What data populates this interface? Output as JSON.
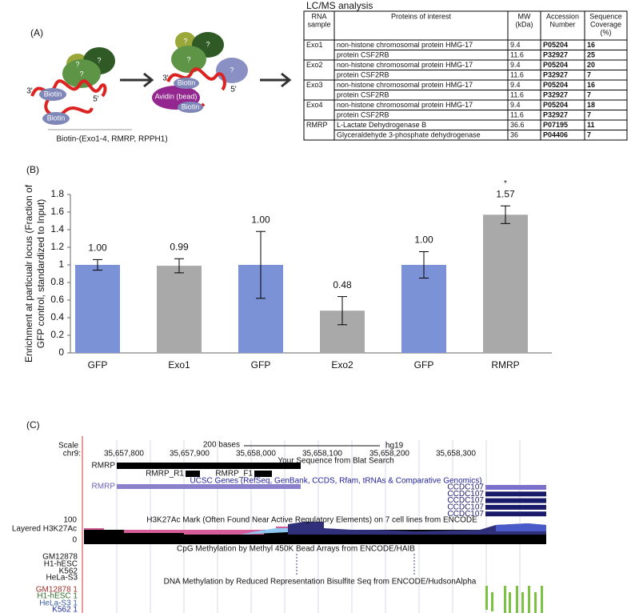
{
  "panel_a": {
    "label": "(A)",
    "left_labels": [
      "?",
      "?",
      "?",
      "3'",
      "5'",
      "Biotin",
      "Biotin"
    ],
    "right_labels": [
      "?",
      "?",
      "?",
      "?",
      "3'",
      "5'",
      "Biotin",
      "Avidin (bead)",
      "Biotin"
    ],
    "caption": "Biotin-(Exo1-4, RMRP, RPPH1)",
    "table": {
      "title": "LC/MS analysis",
      "header": [
        [
          "RNA",
          "sample"
        ],
        [
          "Proteins of interest"
        ],
        [
          "MW",
          "(kDa)"
        ],
        [
          "Accession",
          "Number"
        ],
        [
          "Sequence",
          "Coverage",
          "(%)"
        ]
      ],
      "rows": [
        {
          "sample": "Exo1",
          "protein": "non-histone chromosomal protein HMG-17",
          "mw": 9.4,
          "accession": "P05204",
          "coverage": 16
        },
        {
          "protein": "protein CSF2RB",
          "mw": 11.6,
          "accession": "P32927",
          "coverage": 25
        },
        {
          "sample": "Exo2",
          "protein": "non-histone chromosomal protein HMG-17",
          "mw": 9.4,
          "accession": "P05204",
          "coverage": 20
        },
        {
          "protein": "protein CSF2RB",
          "mw": 11.6,
          "accession": "P32927",
          "coverage": 7
        },
        {
          "sample": "Exo3",
          "protein": "non-histone chromosomal protein HMG-17",
          "mw": 9.4,
          "accession": "P05204",
          "coverage": 16
        },
        {
          "protein": "protein CSF2RB",
          "mw": 11.6,
          "accession": "P32927",
          "coverage": 7
        },
        {
          "sample": "Exo4",
          "protein": "non-histone chromosomal protein HMG-17",
          "mw": 9.4,
          "accession": "P05204",
          "coverage": 18
        },
        {
          "protein": "protein CSF2RB",
          "mw": 11.6,
          "accession": "P32927",
          "coverage": 7
        },
        {
          "sample": "RMRP",
          "protein": "L-Lactate Dehydrogenase B",
          "mw": 36.6,
          "accession": "P07195",
          "coverage": 11
        },
        {
          "protein": "Glyceraldehyde 3-phosphate dehydrogenase",
          "mw": 36,
          "accession": "P04406",
          "coverage": 7
        }
      ]
    }
  },
  "chart_data": {
    "type": "bar",
    "panel_label": "(B)",
    "y_label": [
      "Enrichment at particualr locus (Fraction of",
      "GFP control, standardized to Input)"
    ],
    "categories": [
      "GFP",
      "Exo1",
      "GFP",
      "Exo2",
      "GFP",
      "RMRP"
    ],
    "values": [
      1,
      0.99,
      1,
      0.48,
      1,
      1.57
    ],
    "value_labels": [
      "1.00",
      "0.99",
      "1.00",
      "0.48",
      "1.00",
      "1.57"
    ],
    "errors": [
      0.06,
      0.08,
      0.38,
      0.16,
      0.15,
      0.1
    ],
    "colors": [
      "#7b93d6",
      "#a9a9a9",
      "#7b93d6",
      "#a9a9a9",
      "#7b93d6",
      "#a9a9a9"
    ],
    "annotation": "*",
    "ylim": [
      0,
      1.8
    ],
    "yticks": [
      0,
      0.2,
      0.4,
      0.6,
      0.8,
      1,
      1.2,
      1.4,
      1.6,
      1.8
    ]
  },
  "panel_c": {
    "label": "(C)",
    "scale": "Scale",
    "chrom": "chr9:",
    "scale_bar": "200 bases",
    "assembly": "hg19",
    "positions": [
      "35,657,800",
      "35,657,900",
      "35,658,000",
      "35,658,100",
      "35,658,200",
      "35,658,300"
    ],
    "blat_title": "Your Sequence from Blat Search",
    "blat_items": [
      "RMRP",
      "RMRP_R1",
      "RMRP_F1"
    ],
    "genes_title": "UCSC Genes (RefSeq, GenBank, CCDS, Rfam, tRNAs & Comparative Genomics)",
    "gene_left": "RMRP",
    "genes_right": [
      "CCDC107",
      "CCDC107",
      "CCDC107",
      "CCDC107",
      "CCDC107"
    ],
    "h3k27ac_max": "100",
    "h3k27ac_label": "Layered H3K27Ac",
    "h3k27ac_min": "0",
    "h3k27ac_title": "H3K27Ac Mark (Often Found Near Active Regulatory Elements) on 7 cell lines from ENCODE",
    "cpg_title": "CpG Methylation by Methyl 450K  Bead Arrays from ENCODE/HAIB",
    "cpg_tracks": [
      "GM12878",
      "H1-hESC",
      "K562",
      "HeLa-S3"
    ],
    "rrbs_title": "DNA Methylation by Reduced Representation Bisulfite Seq from ENCODE/HudsonAlpha",
    "rrbs_tracks": [
      "GM12878 1",
      "H1-hESC 1",
      "HeLa-S3 1",
      "K562 1"
    ]
  }
}
